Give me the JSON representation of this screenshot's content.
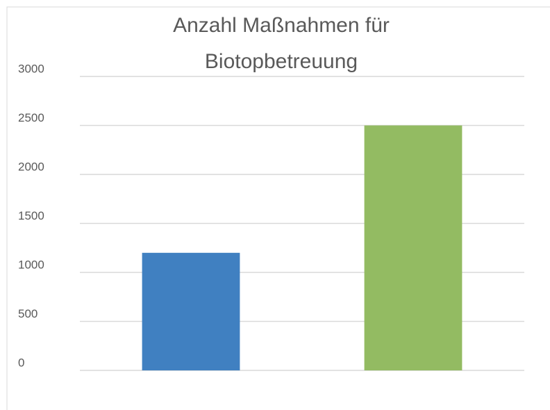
{
  "chart_data": {
    "type": "bar",
    "title": [
      "Anzahl Maßnahmen für",
      "Biotopbetreuung"
    ],
    "categories": [
      null,
      null
    ],
    "series": [
      {
        "name": null,
        "values": [
          1200,
          2500
        ]
      }
    ],
    "colors": [
      "#4080c1",
      "#93bb62"
    ],
    "ylim": [
      0,
      3000
    ],
    "yticks": [
      0,
      500,
      1000,
      1500,
      2000,
      2500,
      3000
    ],
    "grid": true
  }
}
